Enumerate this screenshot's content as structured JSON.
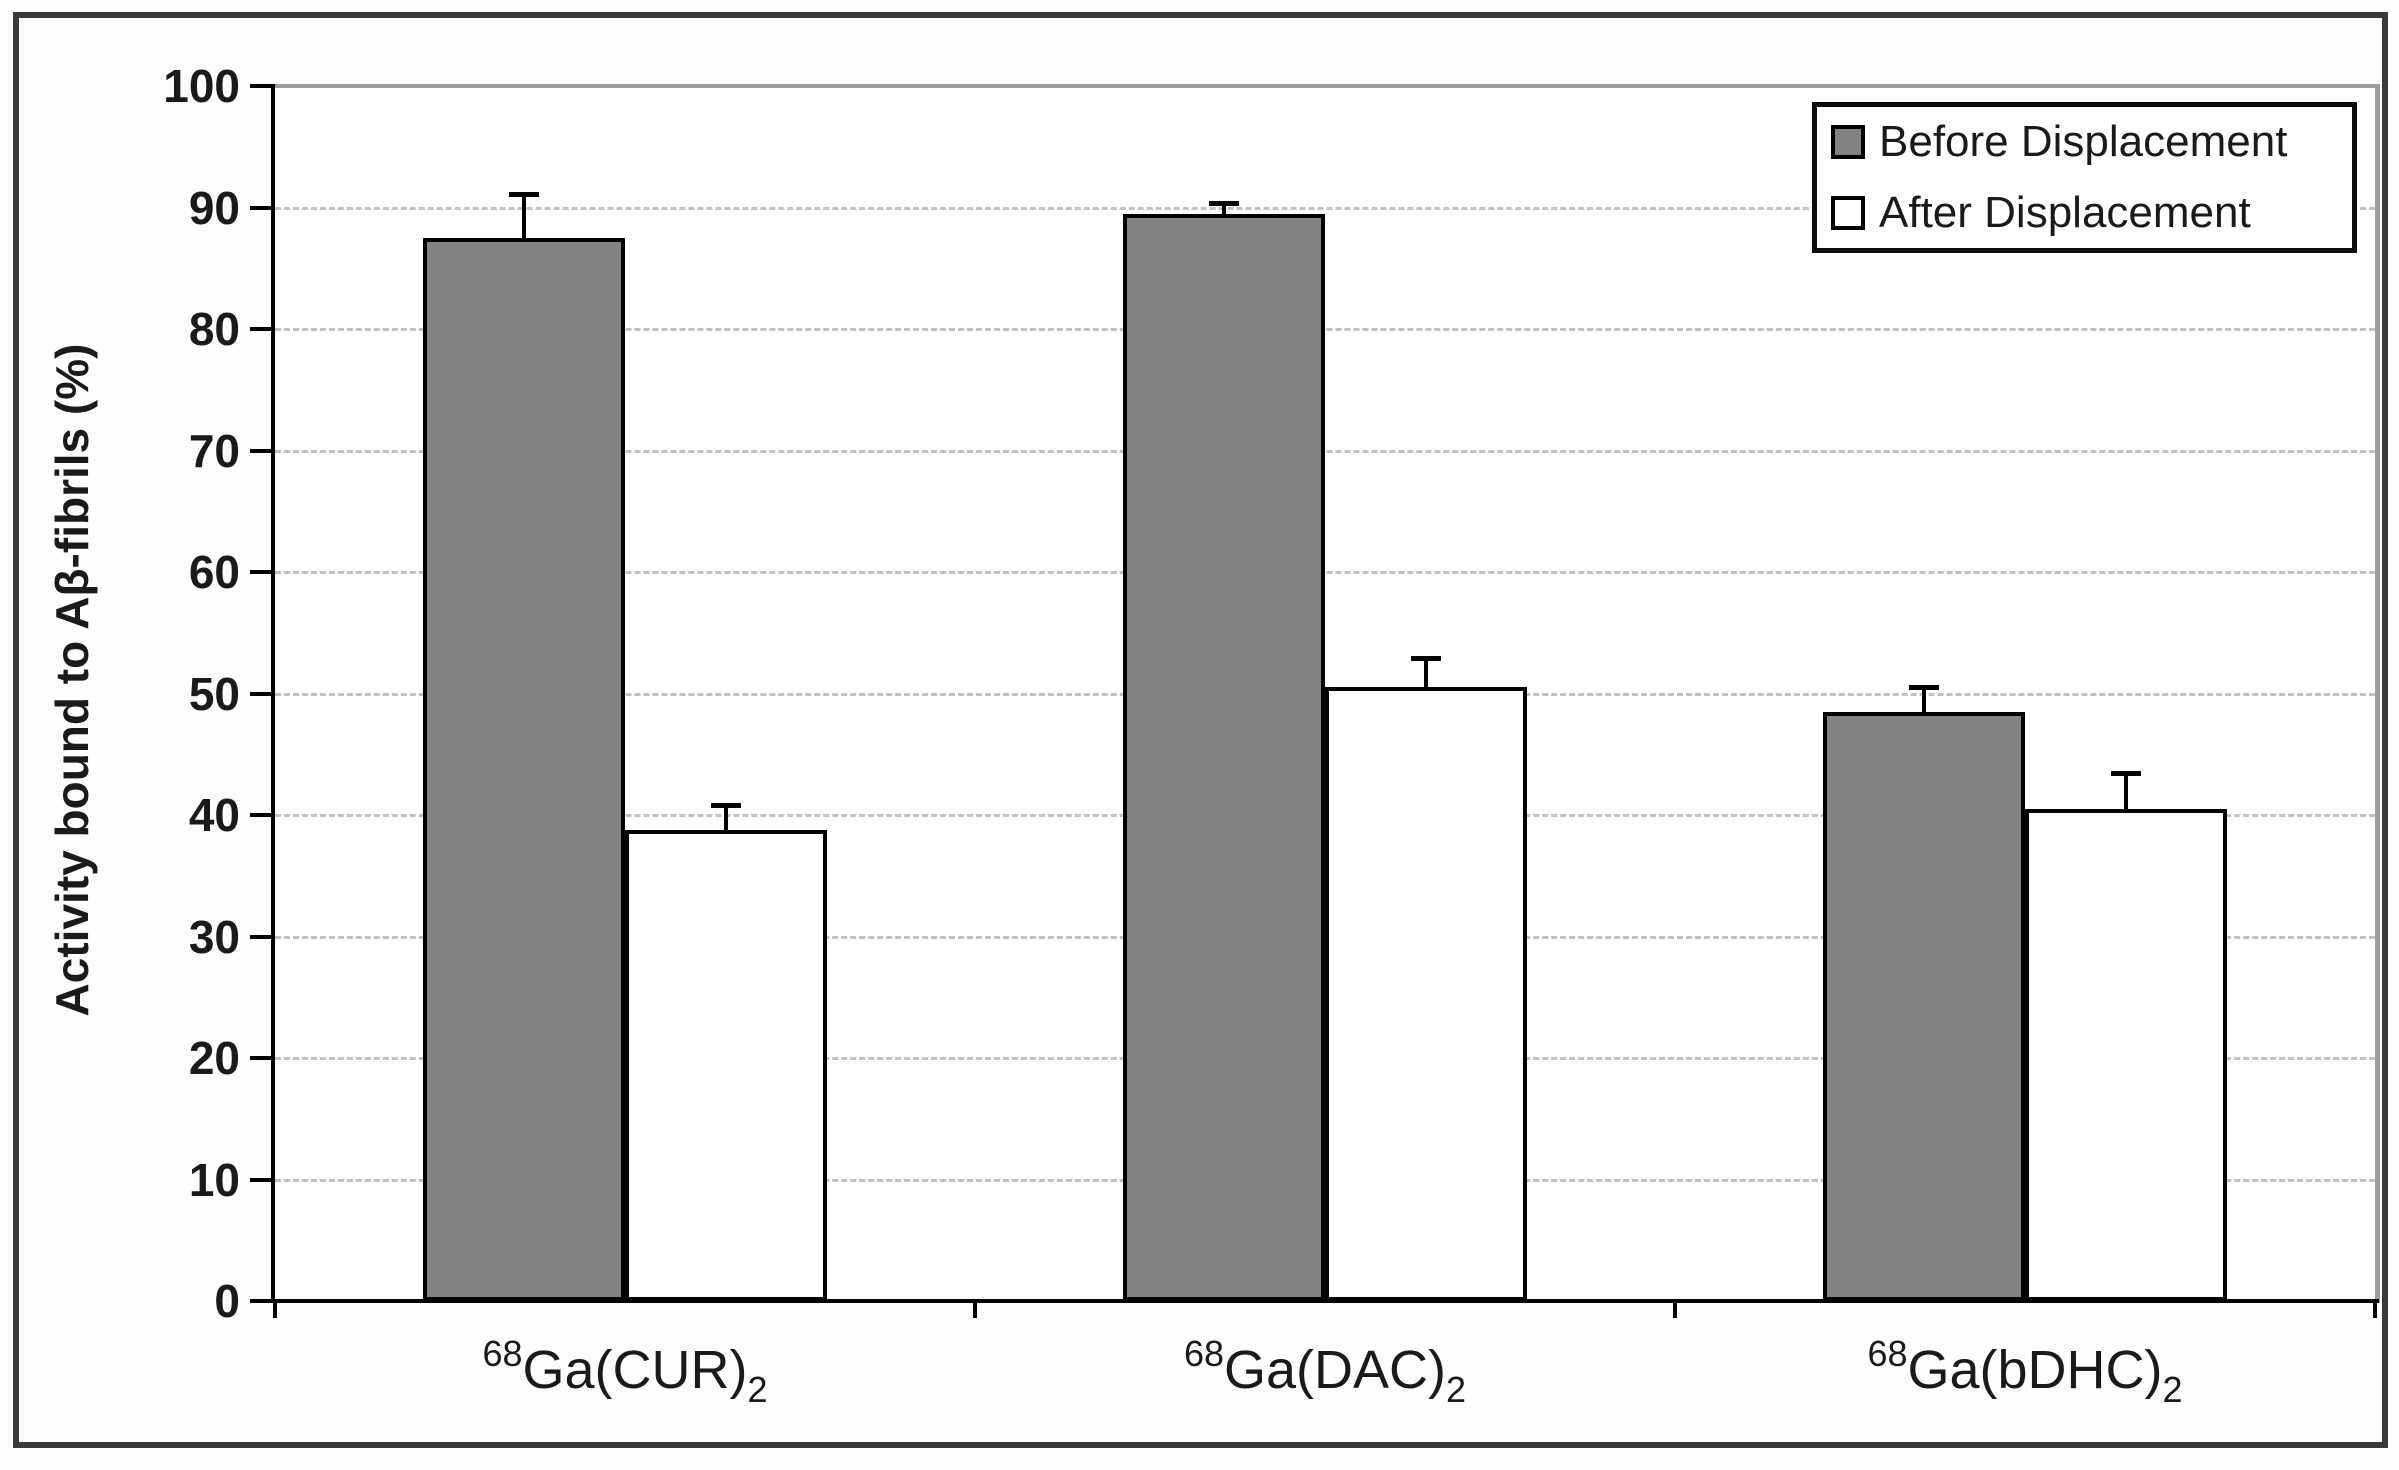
{
  "chart_data": {
    "type": "bar",
    "title": "",
    "ylabel": "Activity bound to Aβ-fibrils (%)",
    "xlabel": "",
    "ylim": [
      0,
      100
    ],
    "yticks": [
      0,
      10,
      20,
      30,
      40,
      50,
      60,
      70,
      80,
      90,
      100
    ],
    "grid": {
      "horizontal": true,
      "style": "dashed",
      "color": "#c2c2c2"
    },
    "legend": {
      "position": "top-right"
    },
    "categories": [
      {
        "sup": "68",
        "text": "Ga(CUR)",
        "sub": "2"
      },
      {
        "sup": "68",
        "text": "Ga(DAC)",
        "sub": "2"
      },
      {
        "sup": "68",
        "text": "Ga(bDHC)",
        "sub": "2"
      }
    ],
    "series": [
      {
        "name": "Before Displacement",
        "fill": "#828282",
        "border": "#000000",
        "values": [
          87.5,
          89.5,
          48.5
        ],
        "errors": [
          3.8,
          1.0,
          2.2
        ]
      },
      {
        "name": "After Displacement",
        "fill": "#ffffff",
        "border": "#000000",
        "values": [
          38.8,
          50.5,
          40.5
        ],
        "errors": [
          2.2,
          2.6,
          3.1
        ]
      }
    ]
  },
  "colors": {
    "axis": "#000000",
    "plot_border": "#9c9c9c",
    "figure_border": "#3a3a3a",
    "text": "#1a1a1a",
    "plot_background": "#ffffff"
  }
}
